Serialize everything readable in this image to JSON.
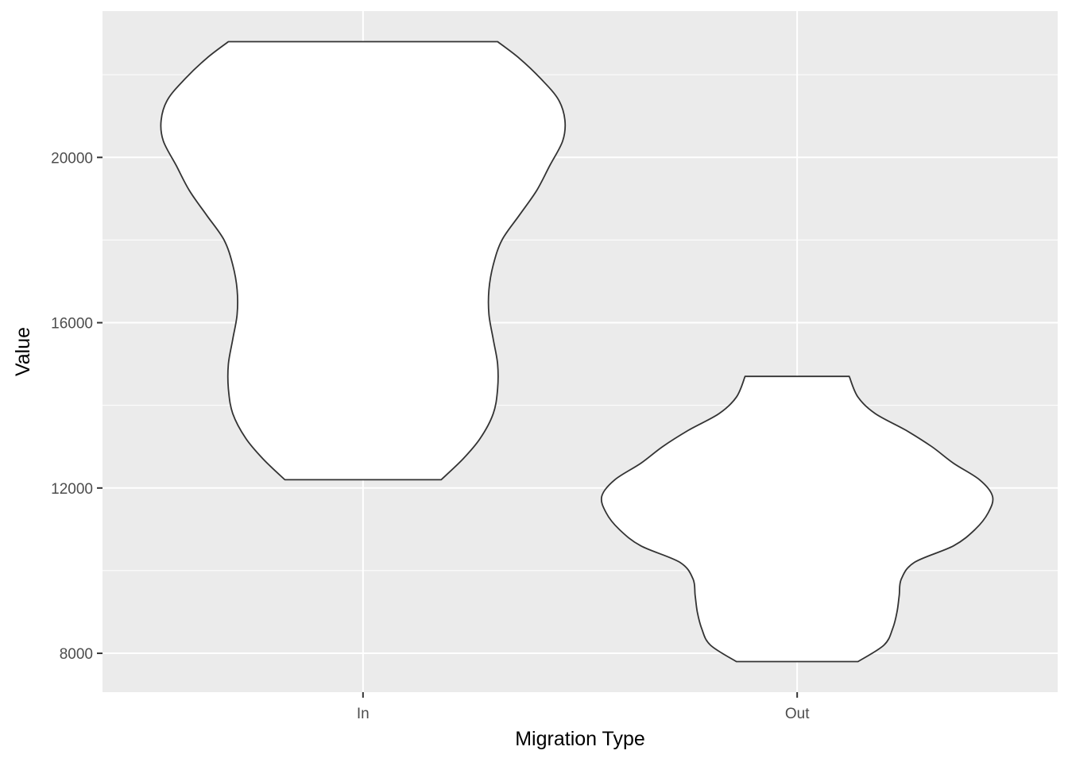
{
  "chart_data": {
    "type": "violin",
    "xlabel": "Migration Type",
    "ylabel": "Value",
    "categories": [
      "In",
      "Out"
    ],
    "yticks": [
      8000,
      12000,
      16000,
      20000
    ],
    "ytick_labels": [
      "8000",
      "12000",
      "16000",
      "20000"
    ],
    "ylim": [
      7060,
      23540
    ],
    "grid": true,
    "panel_background": "#ebebeb",
    "grid_color": "#ffffff",
    "fill_color": "#ffffff",
    "outline_color": "#333333",
    "series": [
      {
        "category": "In",
        "min": 12200,
        "max": 22800,
        "density_profile": [
          [
            12200,
            0.18
          ],
          [
            12700,
            0.23
          ],
          [
            13200,
            0.27
          ],
          [
            13800,
            0.3
          ],
          [
            14400,
            0.31
          ],
          [
            15000,
            0.31
          ],
          [
            15600,
            0.3
          ],
          [
            16200,
            0.29
          ],
          [
            16800,
            0.29
          ],
          [
            17400,
            0.3
          ],
          [
            18000,
            0.32
          ],
          [
            18600,
            0.36
          ],
          [
            19200,
            0.4
          ],
          [
            19800,
            0.43
          ],
          [
            20400,
            0.46
          ],
          [
            20900,
            0.465
          ],
          [
            21400,
            0.45
          ],
          [
            21900,
            0.41
          ],
          [
            22400,
            0.36
          ],
          [
            22800,
            0.31
          ]
        ]
      },
      {
        "category": "Out",
        "min": 7800,
        "max": 14700,
        "density_profile": [
          [
            7800,
            0.14
          ],
          [
            8200,
            0.2
          ],
          [
            8600,
            0.22
          ],
          [
            9000,
            0.23
          ],
          [
            9400,
            0.235
          ],
          [
            9800,
            0.24
          ],
          [
            10200,
            0.27
          ],
          [
            10600,
            0.36
          ],
          [
            11000,
            0.41
          ],
          [
            11400,
            0.44
          ],
          [
            11800,
            0.45
          ],
          [
            12200,
            0.42
          ],
          [
            12600,
            0.36
          ],
          [
            13000,
            0.31
          ],
          [
            13400,
            0.25
          ],
          [
            13800,
            0.18
          ],
          [
            14200,
            0.14
          ],
          [
            14700,
            0.12
          ]
        ]
      }
    ]
  }
}
